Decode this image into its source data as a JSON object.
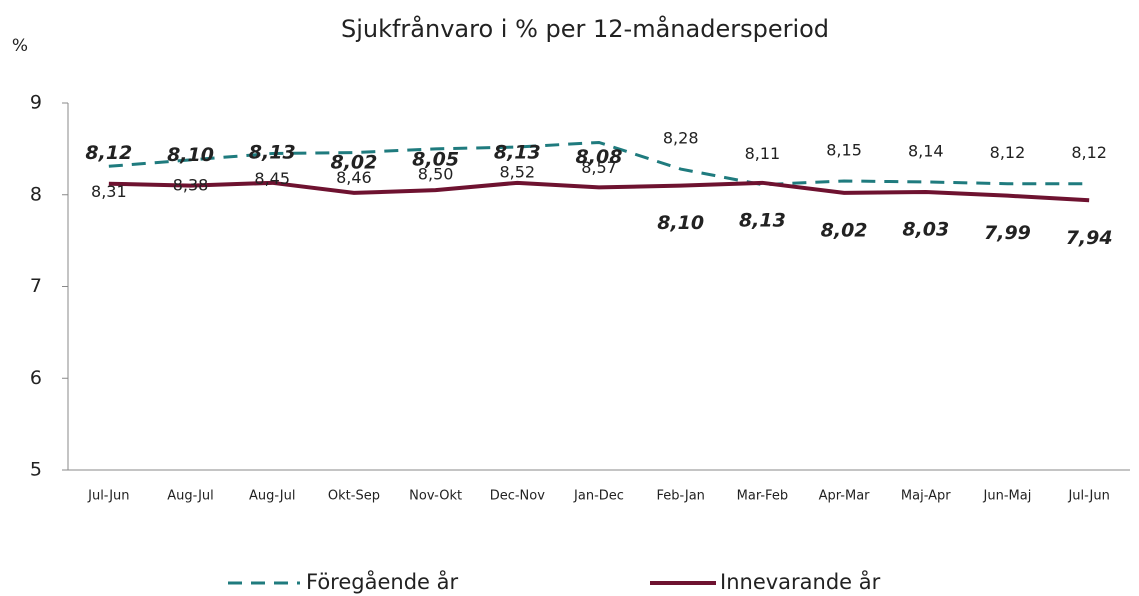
{
  "chart_data": {
    "type": "line",
    "title": "Sjukfrånvaro i % per 12-månadersperiod",
    "y_label": "%",
    "categories": [
      "Jul-Jun",
      "Aug-Jul",
      "Aug-Jul",
      "Okt-Sep",
      "Nov-Okt",
      "Dec-Nov",
      "Jan-Dec",
      "Feb-Jan",
      "Mar-Feb",
      "Apr-Mar",
      "Maj-Apr",
      "Jun-Maj",
      "Jul-Jun"
    ],
    "series": [
      {
        "name": "Föregående år",
        "color": "#1f7b7e",
        "dash": true,
        "values": [
          8.31,
          8.38,
          8.45,
          8.46,
          8.5,
          8.52,
          8.57,
          8.28,
          8.11,
          8.15,
          8.14,
          8.12,
          8.12
        ],
        "value_labels": [
          "8,31",
          "8,38",
          "8,45",
          "8,46",
          "8,50",
          "8,52",
          "8,57",
          "8,28",
          "8,11",
          "8,15",
          "8,14",
          "8,12",
          "8,12"
        ]
      },
      {
        "name": "Innevarande år",
        "color": "#6e1230",
        "dash": false,
        "values": [
          8.12,
          8.1,
          8.13,
          8.02,
          8.05,
          8.13,
          8.08,
          8.1,
          8.13,
          8.02,
          8.03,
          7.99,
          7.94
        ],
        "value_labels": [
          "8,12",
          "8,10",
          "8,13",
          "8,02",
          "8,05",
          "8,13",
          "8,08",
          "8,10",
          "8,13",
          "8,02",
          "8,03",
          "7,99",
          "7,94"
        ]
      }
    ],
    "ylim": [
      5,
      9
    ],
    "yticks": [
      5,
      6,
      7,
      8,
      9
    ],
    "grid": false,
    "legend": "bottom"
  }
}
